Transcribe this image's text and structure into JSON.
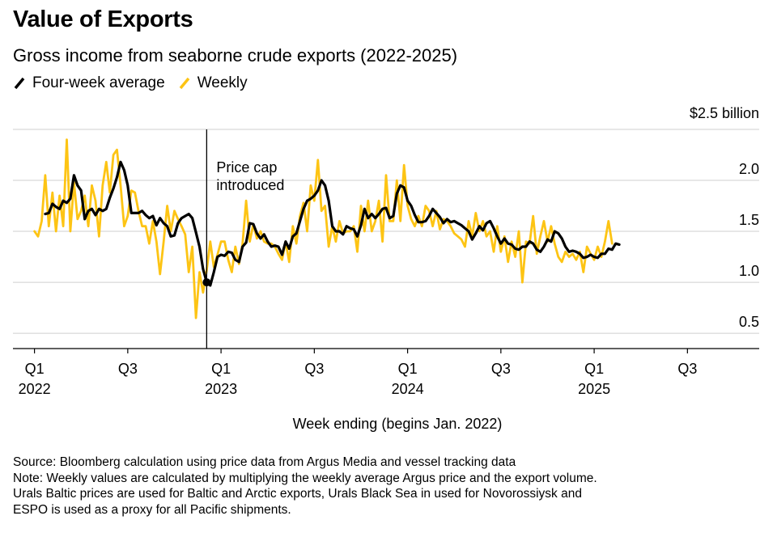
{
  "title": "Value of Exports",
  "subtitle": "Gross income from seaborne crude exports (2022-2025)",
  "legend": [
    {
      "label": "Four-week average",
      "color": "#000000"
    },
    {
      "label": "Weekly",
      "color": "#FDC414"
    }
  ],
  "annotation": "Price cap\nintroduced",
  "footer": {
    "source": "Source: Bloomberg calculation using price data from Argus Media and vessel tracking data",
    "note": [
      "Note: Weekly values are calculated by multiplying the weekly average Argus price and the export volume.",
      "Urals Baltic prices are used for Baltic and Arctic exports, Urals Black Sea in used for Novorossiysk and",
      "ESPO is used as a proxy for all Pacific shipments."
    ]
  },
  "chart_data": {
    "type": "line",
    "xlabel": "Week ending (begins Jan. 2022)",
    "ylabel": "",
    "y_unit": "$2.5 billion",
    "ylim": [
      0.35,
      2.5
    ],
    "yticks": [
      0.5,
      1.0,
      1.5,
      2.0
    ],
    "ytick_labels": [
      "0.5",
      "1.0",
      "1.5",
      "2.0"
    ],
    "xticks": [
      {
        "week": 0,
        "label": [
          "Q1",
          "2022"
        ]
      },
      {
        "week": 26,
        "label": [
          "Q3",
          ""
        ]
      },
      {
        "week": 52,
        "label": [
          "Q1",
          "2023"
        ]
      },
      {
        "week": 78,
        "label": [
          "Q3",
          ""
        ]
      },
      {
        "week": 104,
        "label": [
          "Q1",
          "2024"
        ]
      },
      {
        "week": 130,
        "label": [
          "Q3",
          ""
        ]
      },
      {
        "week": 156,
        "label": [
          "Q1",
          "2025"
        ]
      },
      {
        "week": 182,
        "label": [
          "Q3",
          ""
        ]
      }
    ],
    "xlim": [
      -6,
      202
    ],
    "price_cap_week": 48,
    "grid": true,
    "legend_position": "top-left",
    "series": [
      {
        "name": "Four-week average",
        "color": "#000000",
        "start_week": 3,
        "values": [
          1.67,
          1.68,
          1.77,
          1.74,
          1.72,
          1.8,
          1.78,
          1.82,
          2.05,
          1.95,
          1.9,
          1.62,
          1.7,
          1.72,
          1.66,
          1.72,
          1.7,
          1.72,
          1.83,
          1.92,
          2.03,
          2.18,
          2.1,
          1.95,
          1.68,
          1.68,
          1.68,
          1.7,
          1.66,
          1.63,
          1.65,
          1.56,
          1.63,
          1.58,
          1.55,
          1.45,
          1.46,
          1.58,
          1.63,
          1.65,
          1.67,
          1.63,
          1.49,
          1.35,
          1.13,
          1.0,
          0.97,
          1.1,
          1.25,
          1.27,
          1.26,
          1.3,
          1.29,
          1.22,
          1.2,
          1.35,
          1.39,
          1.58,
          1.57,
          1.48,
          1.43,
          1.47,
          1.4,
          1.35,
          1.36,
          1.35,
          1.27,
          1.4,
          1.33,
          1.45,
          1.48,
          1.6,
          1.72,
          1.8,
          1.82,
          1.85,
          1.9,
          2.0,
          1.95,
          1.8,
          1.55,
          1.5,
          1.5,
          1.47,
          1.55,
          1.53,
          1.52,
          1.45,
          1.56,
          1.72,
          1.63,
          1.67,
          1.63,
          1.67,
          1.72,
          1.73,
          1.63,
          1.65,
          1.87,
          1.95,
          1.93,
          1.8,
          1.75,
          1.66,
          1.59,
          1.59,
          1.6,
          1.65,
          1.72,
          1.68,
          1.64,
          1.58,
          1.62,
          1.59,
          1.6,
          1.58,
          1.56,
          1.53,
          1.5,
          1.42,
          1.48,
          1.55,
          1.51,
          1.58,
          1.6,
          1.53,
          1.45,
          1.38,
          1.43,
          1.38,
          1.37,
          1.33,
          1.32,
          1.35,
          1.35,
          1.4,
          1.38,
          1.32,
          1.3,
          1.35,
          1.42,
          1.4,
          1.5,
          1.48,
          1.43,
          1.35,
          1.3,
          1.31,
          1.3,
          1.28,
          1.24,
          1.25,
          1.27,
          1.25,
          1.24,
          1.28,
          1.28,
          1.33,
          1.32,
          1.38,
          1.37
        ]
      },
      {
        "name": "Weekly",
        "color": "#FDC414",
        "start_week": 0,
        "values": [
          1.5,
          1.45,
          1.6,
          2.05,
          1.55,
          1.88,
          1.5,
          1.85,
          1.55,
          2.4,
          1.5,
          1.98,
          1.62,
          1.7,
          1.85,
          1.55,
          1.95,
          1.8,
          1.45,
          1.95,
          2.18,
          1.88,
          2.25,
          2.3,
          1.95,
          1.55,
          1.65,
          1.9,
          1.88,
          1.7,
          1.55,
          1.55,
          1.38,
          1.6,
          1.4,
          1.08,
          1.4,
          1.75,
          1.5,
          1.7,
          1.62,
          1.55,
          1.47,
          1.1,
          1.35,
          0.65,
          1.1,
          0.9,
          1.12,
          1.4,
          1.15,
          1.27,
          1.4,
          1.4,
          1.22,
          1.1,
          1.35,
          1.18,
          1.38,
          1.8,
          1.4,
          1.57,
          1.43,
          1.5,
          1.4,
          1.38,
          1.38,
          1.35,
          1.28,
          1.22,
          1.4,
          1.2,
          1.55,
          1.38,
          1.65,
          1.78,
          1.5,
          1.95,
          1.8,
          2.2,
          1.7,
          1.75,
          1.35,
          1.55,
          1.4,
          1.6,
          1.48,
          1.5,
          1.5,
          1.55,
          1.3,
          1.75,
          1.5,
          1.8,
          1.5,
          1.6,
          1.8,
          1.4,
          2.05,
          1.6,
          1.6,
          2.0,
          1.6,
          2.15,
          1.75,
          1.62,
          1.55,
          1.65,
          1.55,
          1.75,
          1.7,
          1.55,
          1.7,
          1.52,
          1.62,
          1.6,
          1.55,
          1.48,
          1.45,
          1.42,
          1.35,
          1.6,
          1.45,
          1.68,
          1.5,
          1.6,
          1.45,
          1.5,
          1.3,
          1.55,
          1.3,
          1.45,
          1.2,
          1.4,
          1.25,
          1.5,
          1.0,
          1.4,
          1.38,
          1.65,
          1.28,
          1.45,
          1.6,
          1.4,
          1.55,
          1.38,
          1.25,
          1.2,
          1.3,
          1.25,
          1.28,
          1.22,
          1.3,
          1.1,
          1.35,
          1.28,
          1.22,
          1.35,
          1.25,
          1.4,
          1.6,
          1.38
        ]
      }
    ]
  }
}
